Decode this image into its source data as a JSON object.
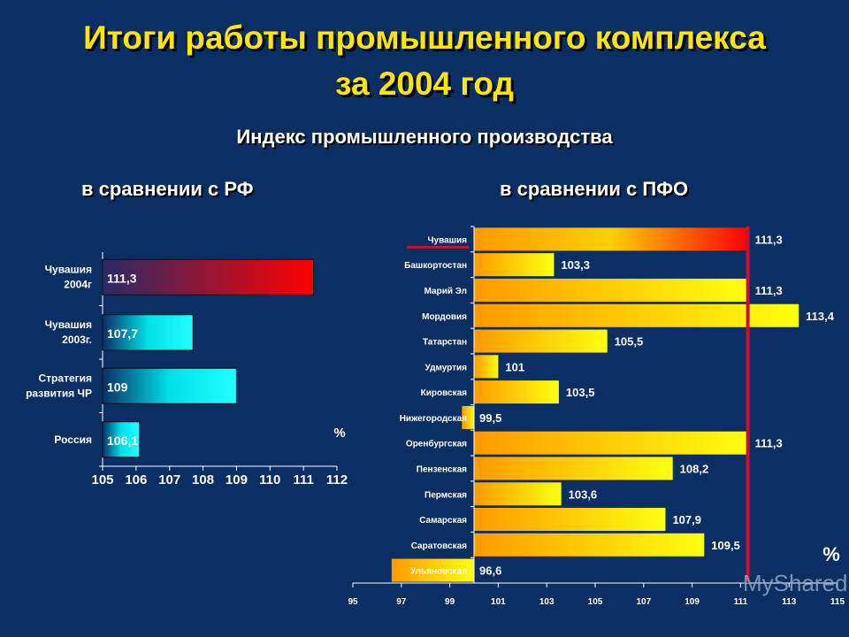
{
  "title_line1": "Итоги работы промышленного комплекса",
  "title_line2": "за 2004 год",
  "subtitle": "Индекс промышленного производства",
  "colors": {
    "background": "#0b2f63",
    "title": "#ffe600",
    "highlight_line": "#c8102e"
  },
  "chart_data": [
    {
      "type": "bar",
      "orientation": "horizontal",
      "title": "в сравнении с РФ",
      "unit_label": "%",
      "categories": [
        [
          "Чувашия",
          "2004г"
        ],
        [
          "Чувашия",
          "2003г."
        ],
        [
          "Стратегия",
          "развития ЧР"
        ],
        [
          "Россия"
        ]
      ],
      "values": [
        111.3,
        107.7,
        109,
        106.1
      ],
      "data_labels": [
        "111,3",
        "107,7",
        "109",
        "106,1"
      ],
      "bar_colors": [
        "red-gradient",
        "cyan-gradient",
        "cyan-gradient",
        "cyan-gradient"
      ],
      "xlim": [
        105,
        112
      ],
      "xticks": [
        "105",
        "106",
        "107",
        "108",
        "109",
        "110",
        "111",
        "112"
      ],
      "grid": false
    },
    {
      "type": "bar",
      "orientation": "horizontal",
      "title": "в сравнении с ПФО",
      "unit_label": "%",
      "baseline": 100,
      "categories": [
        "Чувашия",
        "Башкортостан",
        "Марий Эл",
        "Мордовия",
        "Татарстан",
        "Удмуртия",
        "Кировская",
        "Нижегородская",
        "Оренбургская",
        "Пензенская",
        "Пермская",
        "Самарская",
        "Саратовская",
        "Ульяновская"
      ],
      "values": [
        111.3,
        103.3,
        111.3,
        113.4,
        105.5,
        101,
        103.5,
        99.5,
        111.3,
        108.2,
        103.6,
        107.9,
        109.5,
        96.6
      ],
      "data_labels": [
        "111,3",
        "103,3",
        "111,3",
        "113,4",
        "105,5",
        "101",
        "103,5",
        "99,5",
        "111,3",
        "108,2",
        "103,6",
        "107,9",
        "109,5",
        "96,6"
      ],
      "highlight": "Чувашия",
      "reference_line": 111.3,
      "xlim": [
        95,
        115
      ],
      "xticks": [
        "95",
        "97",
        "99",
        "101",
        "103",
        "105",
        "107",
        "109",
        "111",
        "113",
        "115"
      ],
      "grid": false
    }
  ],
  "watermark": "MyShared"
}
